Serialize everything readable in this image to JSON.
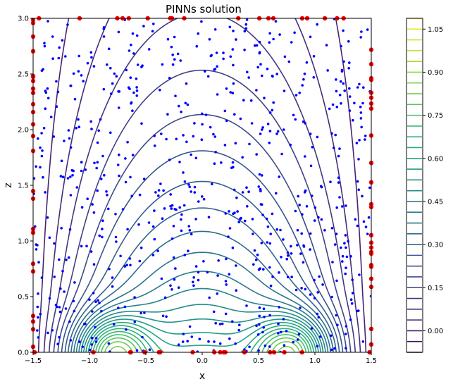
{
  "chart_data": {
    "type": "contour",
    "title": "PINNs solution",
    "xlabel": "x",
    "ylabel": "z",
    "xlim": [
      -1.5,
      1.5
    ],
    "ylim": [
      0.0,
      3.0
    ],
    "x_ticks": [
      "−1.5",
      "−1.0",
      "−0.5",
      "0.0",
      "0.5",
      "1.0",
      "1.5"
    ],
    "y_ticks": [
      "0.0",
      "0.5",
      "1.0",
      "1.5",
      "2.0",
      "2.5",
      "3.0"
    ],
    "grid": false,
    "colormap": "viridis",
    "colorbar": {
      "levels": [
        -0.075,
        -0.0375,
        0.0,
        0.0375,
        0.075,
        0.1125,
        0.15,
        0.1875,
        0.225,
        0.2625,
        0.3,
        0.3375,
        0.375,
        0.4125,
        0.45,
        0.4875,
        0.525,
        0.5625,
        0.6,
        0.6375,
        0.675,
        0.7125,
        0.75,
        0.7875,
        0.825,
        0.8625,
        0.9,
        0.9375,
        0.975,
        1.0125,
        1.05,
        1.0875
      ],
      "tick_values": [
        0.0,
        0.15,
        0.3,
        0.45,
        0.6,
        0.75,
        0.9,
        1.05
      ],
      "tick_labels": [
        "0.00",
        "0.15",
        "0.30",
        "0.45",
        "0.60",
        "0.75",
        "0.90",
        "1.05"
      ]
    },
    "field": {
      "description": "contour levels of a field with two peaks near the bottom boundary",
      "peaks": [
        [
          -0.8,
          0.0
        ],
        [
          0.8,
          0.0
        ]
      ],
      "zero_line_x": [
        -1.5,
        1.5
      ]
    },
    "collocation_points": {
      "color": "#0000ff",
      "count": 700
    },
    "boundary_points": {
      "color": "#ff0000",
      "edges": [
        "left",
        "right",
        "bottom",
        "top"
      ]
    }
  }
}
